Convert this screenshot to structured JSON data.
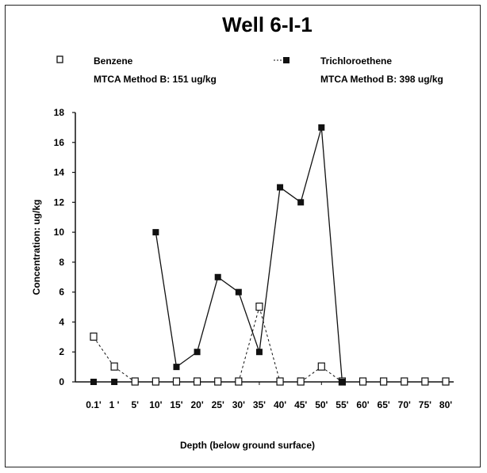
{
  "chart_data": {
    "type": "line",
    "title": "Well 6-I-1",
    "xlabel": "Depth  (below ground surface)",
    "ylabel": "Concentration:  ug/kg",
    "categories": [
      "0.1'",
      "1 '",
      "5'",
      "10'",
      "15'",
      "20'",
      "25'",
      "30'",
      "35'",
      "40'",
      "45'",
      "50'",
      "55'",
      "60'",
      "65'",
      "70'",
      "75'",
      "80'"
    ],
    "ylim": [
      0,
      18
    ],
    "yticks": [
      0,
      2,
      4,
      6,
      8,
      10,
      12,
      14,
      16,
      18
    ],
    "grid": false,
    "legend_placement": "top",
    "series": [
      {
        "name": "Benzene",
        "marker": "open-square",
        "color": "#111111",
        "values": [
          3,
          1,
          0,
          0,
          0,
          0,
          0,
          0,
          5,
          0,
          0,
          1,
          0,
          0,
          0,
          0,
          0,
          0
        ]
      },
      {
        "name": "Trichloroethene",
        "marker": "filled-square",
        "color": "#111111",
        "values": [
          0,
          0,
          null,
          10,
          1,
          2,
          7,
          6,
          2,
          13,
          12,
          17,
          0,
          null,
          null,
          null,
          null,
          null
        ]
      }
    ],
    "legend": [
      {
        "series": "Benzene",
        "note": "MTCA Method B:  151 ug/kg"
      },
      {
        "series": "Trichloroethene",
        "note": "MTCA Method B:  398 ug/kg"
      }
    ]
  }
}
